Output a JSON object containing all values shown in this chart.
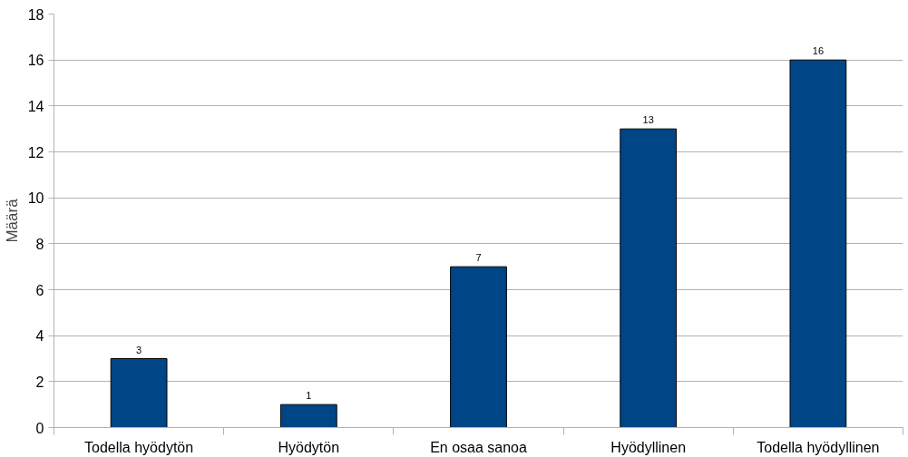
{
  "chart_data": {
    "type": "bar",
    "ylabel": "Määrä",
    "categories": [
      "Todella hyödytön",
      "Hyödytön",
      "En osaa sanoa",
      "Hyödyllinen",
      "Todella hyödyllinen"
    ],
    "values": [
      3,
      1,
      7,
      13,
      16
    ],
    "color": "#004586",
    "ylim": [
      0,
      18
    ],
    "yticks": [
      0,
      2,
      4,
      6,
      8,
      10,
      12,
      14,
      16,
      18
    ],
    "grid": "y",
    "data_labels": true
  }
}
